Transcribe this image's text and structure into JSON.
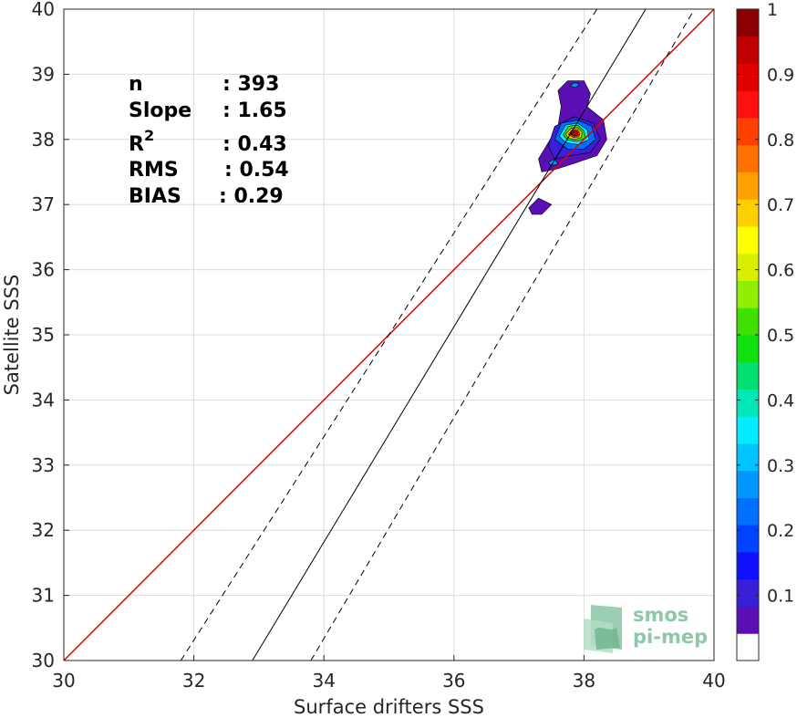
{
  "chart_data": {
    "type": "scatter",
    "xlabel": "Surface drifters SSS",
    "ylabel": "Satellite SSS",
    "xlim": [
      30,
      40
    ],
    "ylim": [
      30,
      40
    ],
    "x_ticks": [
      30,
      32,
      34,
      36,
      38,
      40
    ],
    "y_ticks": [
      30,
      31,
      32,
      33,
      34,
      35,
      36,
      37,
      38,
      39,
      40
    ],
    "grid": true,
    "stats": [
      {
        "label": "n",
        "value": ": 393"
      },
      {
        "label": "Slope",
        "value": ": 1.65"
      },
      {
        "label": "R",
        "superscript": "2",
        "value": ": 0.43"
      },
      {
        "label": "RMS",
        "value": ": 0.54"
      },
      {
        "label": "BIAS",
        "value": ": 0.29"
      }
    ],
    "identity_line": {
      "color": "#e00000",
      "x": [
        30,
        40
      ],
      "y": [
        30,
        40
      ]
    },
    "regression_line": {
      "slope": 1.65,
      "x_at_y30": 32.9,
      "x_at_y40": 38.95,
      "color": "#000000"
    },
    "regression_bounds": [
      {
        "x_at_y30": 31.8,
        "x_at_y40": 38.2
      },
      {
        "x_at_y30": 33.8,
        "x_at_y40": 39.7
      }
    ],
    "density_peak": {
      "x": 37.85,
      "y": 38.1
    },
    "colorbar": {
      "min": 0,
      "max": 1,
      "ticks": [
        "0.1",
        "0.2",
        "0.3",
        "0.4",
        "0.5",
        "0.6",
        "0.7",
        "0.8",
        "0.9",
        "1"
      ],
      "colors": [
        "#ffffff",
        "#5a0fb4",
        "#3a1fd8",
        "#1010ff",
        "#0044ff",
        "#0070ff",
        "#0098ff",
        "#00c4ff",
        "#00eeff",
        "#00e8b8",
        "#00e070",
        "#10e010",
        "#40e000",
        "#90ee00",
        "#d8f000",
        "#ffff00",
        "#ffd000",
        "#ffa000",
        "#ff7000",
        "#ff4000",
        "#ff1010",
        "#e00000",
        "#c00000",
        "#8b0000"
      ]
    },
    "contours": [
      {
        "level": 0.05,
        "color": "#5a0fb4",
        "paths": [
          [
            [
              37.6,
              38.75
            ],
            [
              37.75,
              38.9
            ],
            [
              38.0,
              38.9
            ],
            [
              38.1,
              38.7
            ],
            [
              38.05,
              38.5
            ],
            [
              38.3,
              38.3
            ],
            [
              38.35,
              38.0
            ],
            [
              38.2,
              37.75
            ],
            [
              37.9,
              37.65
            ],
            [
              37.6,
              37.55
            ],
            [
              37.35,
              37.5
            ],
            [
              37.3,
              37.7
            ],
            [
              37.45,
              37.95
            ],
            [
              37.6,
              38.2
            ],
            [
              37.65,
              38.5
            ]
          ],
          [
            [
              37.15,
              36.95
            ],
            [
              37.3,
              37.1
            ],
            [
              37.5,
              37.0
            ],
            [
              37.35,
              36.85
            ],
            [
              37.2,
              36.85
            ]
          ]
        ]
      },
      {
        "level": 0.1,
        "color": "#3a1fd8",
        "paths": [
          [
            [
              37.45,
              37.9
            ],
            [
              37.55,
              38.2
            ],
            [
              37.85,
              38.35
            ],
            [
              38.15,
              38.25
            ],
            [
              38.25,
              38.0
            ],
            [
              38.1,
              37.8
            ],
            [
              37.8,
              37.75
            ],
            [
              37.55,
              37.7
            ]
          ]
        ]
      },
      {
        "level": 0.2,
        "color": "#0070ff",
        "paths": [
          [
            [
              37.55,
              38.0
            ],
            [
              37.65,
              38.25
            ],
            [
              37.9,
              38.3
            ],
            [
              38.12,
              38.2
            ],
            [
              38.18,
              38.0
            ],
            [
              38.0,
              37.85
            ],
            [
              37.75,
              37.85
            ]
          ]
        ]
      },
      {
        "level": 0.35,
        "color": "#00eeff",
        "paths": [
          [
            [
              37.62,
              38.05
            ],
            [
              37.72,
              38.22
            ],
            [
              37.9,
              38.25
            ],
            [
              38.05,
              38.15
            ],
            [
              38.08,
              38.0
            ],
            [
              37.92,
              37.92
            ],
            [
              37.72,
              37.95
            ]
          ]
        ]
      },
      {
        "level": 0.5,
        "color": "#40e000",
        "paths": [
          [
            [
              37.68,
              38.07
            ],
            [
              37.76,
              38.2
            ],
            [
              37.9,
              38.22
            ],
            [
              38.0,
              38.13
            ],
            [
              38.02,
              38.02
            ],
            [
              37.9,
              37.97
            ],
            [
              37.75,
              37.99
            ]
          ]
        ]
      },
      {
        "level": 0.7,
        "color": "#ffd000",
        "paths": [
          [
            [
              37.72,
              38.08
            ],
            [
              37.8,
              38.17
            ],
            [
              37.9,
              38.18
            ],
            [
              37.97,
              38.11
            ],
            [
              37.96,
              38.03
            ],
            [
              37.86,
              38.0
            ],
            [
              37.76,
              38.02
            ]
          ]
        ]
      },
      {
        "level": 0.85,
        "color": "#ff4000",
        "paths": [
          [
            [
              37.76,
              38.08
            ],
            [
              37.82,
              38.15
            ],
            [
              37.9,
              38.15
            ],
            [
              37.94,
              38.09
            ],
            [
              37.92,
              38.04
            ],
            [
              37.84,
              38.03
            ]
          ]
        ]
      },
      {
        "level": 0.95,
        "color": "#c00000",
        "paths": [
          [
            [
              37.8,
              38.08
            ],
            [
              37.85,
              38.13
            ],
            [
              37.9,
              38.12
            ],
            [
              37.91,
              38.07
            ],
            [
              37.85,
              38.05
            ]
          ]
        ]
      },
      {
        "level": 0.15,
        "color": "#0098ff",
        "paths": [
          [
            [
              37.78,
              38.82
            ],
            [
              37.85,
              38.87
            ],
            [
              37.93,
              38.85
            ],
            [
              37.88,
              38.8
            ]
          ],
          [
            [
              37.45,
              37.65
            ],
            [
              37.55,
              37.7
            ],
            [
              37.6,
              37.62
            ],
            [
              37.5,
              37.6
            ]
          ]
        ]
      }
    ]
  },
  "logo": {
    "line1": "smos",
    "line2": "pi-mep"
  }
}
